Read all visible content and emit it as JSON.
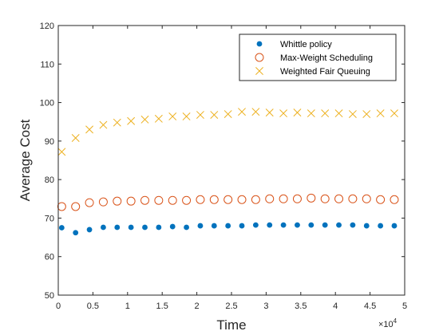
{
  "chart_data": {
    "type": "scatter",
    "title": "",
    "xlabel": "Time",
    "ylabel": "Average Cost",
    "xlim": [
      0,
      5
    ],
    "ylim": [
      50,
      120
    ],
    "x_ticks": [
      "0",
      "0.5",
      "1",
      "1.5",
      "2",
      "2.5",
      "3",
      "3.5",
      "4",
      "4.5",
      "5"
    ],
    "y_ticks": [
      "50",
      "60",
      "70",
      "80",
      "90",
      "100",
      "110",
      "120"
    ],
    "x_exponent_base": "×10",
    "x_exponent_power": "4",
    "grid": false,
    "legend_position": "top-right",
    "x": [
      0.05,
      0.25,
      0.45,
      0.65,
      0.85,
      1.05,
      1.25,
      1.45,
      1.65,
      1.85,
      2.05,
      2.25,
      2.45,
      2.65,
      2.85,
      3.05,
      3.25,
      3.45,
      3.65,
      3.85,
      4.05,
      4.25,
      4.45,
      4.65,
      4.85
    ],
    "series": [
      {
        "name": "Whittle policy",
        "marker": "dot",
        "color": "#0072BD",
        "values": [
          67.5,
          66.2,
          67.0,
          67.6,
          67.6,
          67.6,
          67.6,
          67.6,
          67.8,
          67.6,
          68.0,
          68.0,
          68.0,
          68.0,
          68.2,
          68.2,
          68.2,
          68.2,
          68.2,
          68.2,
          68.2,
          68.2,
          68.0,
          68.0,
          68.0
        ]
      },
      {
        "name": "Max-Weight Scheduling",
        "marker": "circle",
        "color": "#D95319",
        "values": [
          73.0,
          73.0,
          74.0,
          74.2,
          74.4,
          74.4,
          74.6,
          74.6,
          74.6,
          74.6,
          74.8,
          74.8,
          74.8,
          74.8,
          74.8,
          75.0,
          75.0,
          75.0,
          75.2,
          75.0,
          75.0,
          75.0,
          75.0,
          74.8,
          74.8
        ]
      },
      {
        "name": "Weighted Fair Queuing",
        "marker": "x",
        "color": "#EDB120",
        "values": [
          87.2,
          90.8,
          93.0,
          94.2,
          94.8,
          95.2,
          95.6,
          95.8,
          96.4,
          96.4,
          96.8,
          96.8,
          97.0,
          97.6,
          97.6,
          97.4,
          97.2,
          97.4,
          97.2,
          97.2,
          97.2,
          97.0,
          97.0,
          97.2,
          97.2
        ]
      }
    ]
  }
}
